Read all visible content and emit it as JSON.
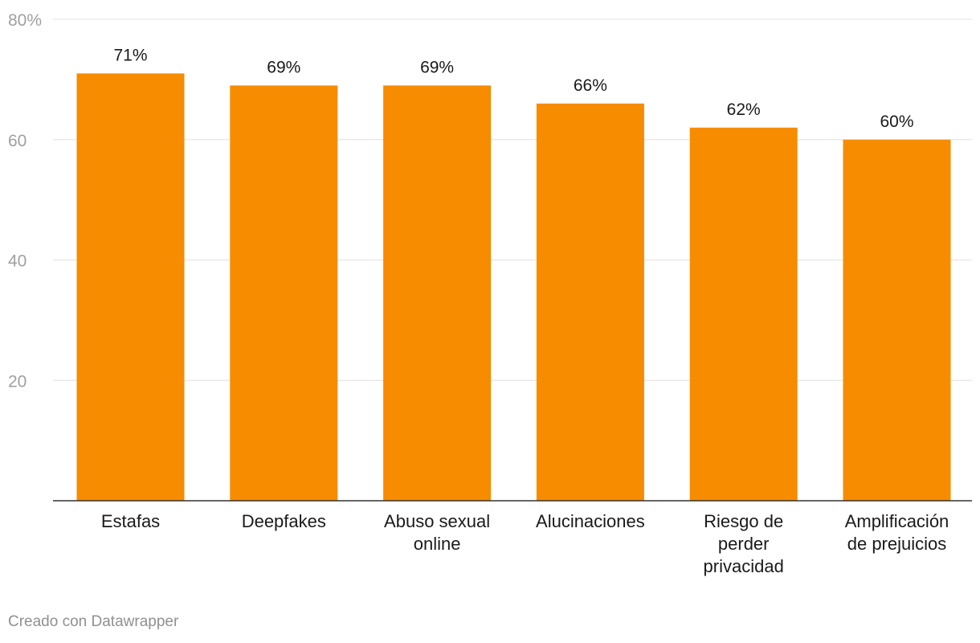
{
  "chart_data": {
    "type": "bar",
    "title": "",
    "xlabel": "",
    "ylabel": "",
    "ylim": [
      0,
      80
    ],
    "yticks": [
      {
        "value": 20,
        "label": "20"
      },
      {
        "value": 40,
        "label": "40"
      },
      {
        "value": 60,
        "label": "60"
      },
      {
        "value": 80,
        "label": "80%"
      }
    ],
    "categories": [
      [
        "Estafas"
      ],
      [
        "Deepfakes"
      ],
      [
        "Abuso sexual",
        "online"
      ],
      [
        "Alucinaciones"
      ],
      [
        "Riesgo de",
        "perder",
        "privacidad"
      ],
      [
        "Amplificación",
        "de prejuicios"
      ]
    ],
    "values": [
      71,
      69,
      69,
      66,
      62,
      60
    ],
    "value_labels": [
      "71%",
      "69%",
      "69%",
      "66%",
      "62%",
      "60%"
    ],
    "bar_color": "#f78c00",
    "grid": true
  },
  "footer": {
    "credit": "Creado con Datawrapper"
  }
}
